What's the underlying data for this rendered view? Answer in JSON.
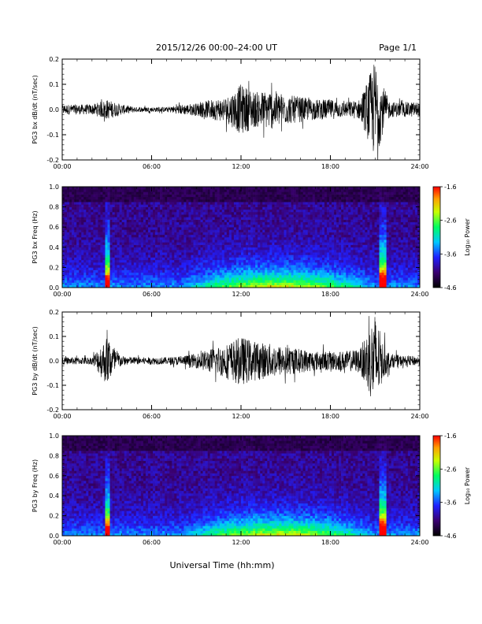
{
  "header": {
    "title": "2015/12/26  00:00–24:00 UT",
    "page": "Page 1/1"
  },
  "footer": {
    "xaxis_title": "Universal Time (hh:mm)"
  },
  "colorbar": {
    "ticks": [
      "-1.6",
      "-2.6",
      "-3.6",
      "-4.6"
    ],
    "label": "Log₁₀ Power"
  },
  "chart_data": [
    {
      "type": "line",
      "ylabel": "PG3 bx dB/dt (nT/sec)",
      "xlim_hours": [
        0,
        24
      ],
      "ylim": [
        -0.2,
        0.2
      ],
      "xticks": [
        "00:00",
        "06:00",
        "12:00",
        "18:00",
        "24:00"
      ],
      "yticks": [
        "0.2",
        "0.1",
        "0.0",
        "-0.1",
        "-0.2"
      ],
      "envelope": {
        "hours": [
          0,
          1,
          2,
          3,
          4,
          5,
          6,
          7,
          8,
          9,
          10,
          11,
          12,
          13,
          14,
          15,
          16,
          17,
          18,
          19,
          20,
          21,
          21.5,
          22,
          23,
          24
        ],
        "amplitude": [
          0.02,
          0.02,
          0.02,
          0.04,
          0.02,
          0.01,
          0.01,
          0.01,
          0.02,
          0.025,
          0.04,
          0.05,
          0.1,
          0.07,
          0.08,
          0.06,
          0.05,
          0.04,
          0.04,
          0.03,
          0.04,
          0.2,
          0.1,
          0.03,
          0.03,
          0.03
        ]
      }
    },
    {
      "type": "heatmap",
      "ylabel": "PG3 bx Freq (Hz)",
      "xlim_hours": [
        0,
        24
      ],
      "ylim": [
        0,
        1.0
      ],
      "zlim": [
        -4.6,
        -1.6
      ],
      "xticks": [
        "00:00",
        "06:00",
        "12:00",
        "18:00",
        "24:00"
      ],
      "yticks": [
        "1.0",
        "0.8",
        "0.6",
        "0.4",
        "0.2",
        "0.0"
      ]
    },
    {
      "type": "line",
      "ylabel": "PG3 by dB/dt (nT/sec)",
      "xlim_hours": [
        0,
        24
      ],
      "ylim": [
        -0.2,
        0.2
      ],
      "xticks": [
        "00:00",
        "06:00",
        "12:00",
        "18:00",
        "24:00"
      ],
      "yticks": [
        "0.2",
        "0.1",
        "0.0",
        "-0.1",
        "-0.2"
      ],
      "envelope": {
        "hours": [
          0,
          1,
          2,
          3,
          4,
          5,
          6,
          7,
          8,
          9,
          10,
          11,
          12,
          13,
          14,
          15,
          16,
          17,
          18,
          19,
          20,
          21,
          21.5,
          22,
          23,
          24
        ],
        "amplitude": [
          0.015,
          0.015,
          0.015,
          0.1,
          0.02,
          0.015,
          0.015,
          0.015,
          0.02,
          0.03,
          0.05,
          0.07,
          0.1,
          0.08,
          0.07,
          0.06,
          0.05,
          0.04,
          0.04,
          0.04,
          0.05,
          0.2,
          0.08,
          0.03,
          0.02,
          0.02
        ]
      }
    },
    {
      "type": "heatmap",
      "ylabel": "PG3 by Freq (Hz)",
      "xlim_hours": [
        0,
        24
      ],
      "ylim": [
        0,
        1.0
      ],
      "zlim": [
        -4.6,
        -1.6
      ],
      "xticks": [
        "00:00",
        "06:00",
        "12:00",
        "18:00",
        "24:00"
      ],
      "yticks": [
        "1.0",
        "0.8",
        "0.6",
        "0.4",
        "0.2",
        "0.0"
      ]
    }
  ]
}
